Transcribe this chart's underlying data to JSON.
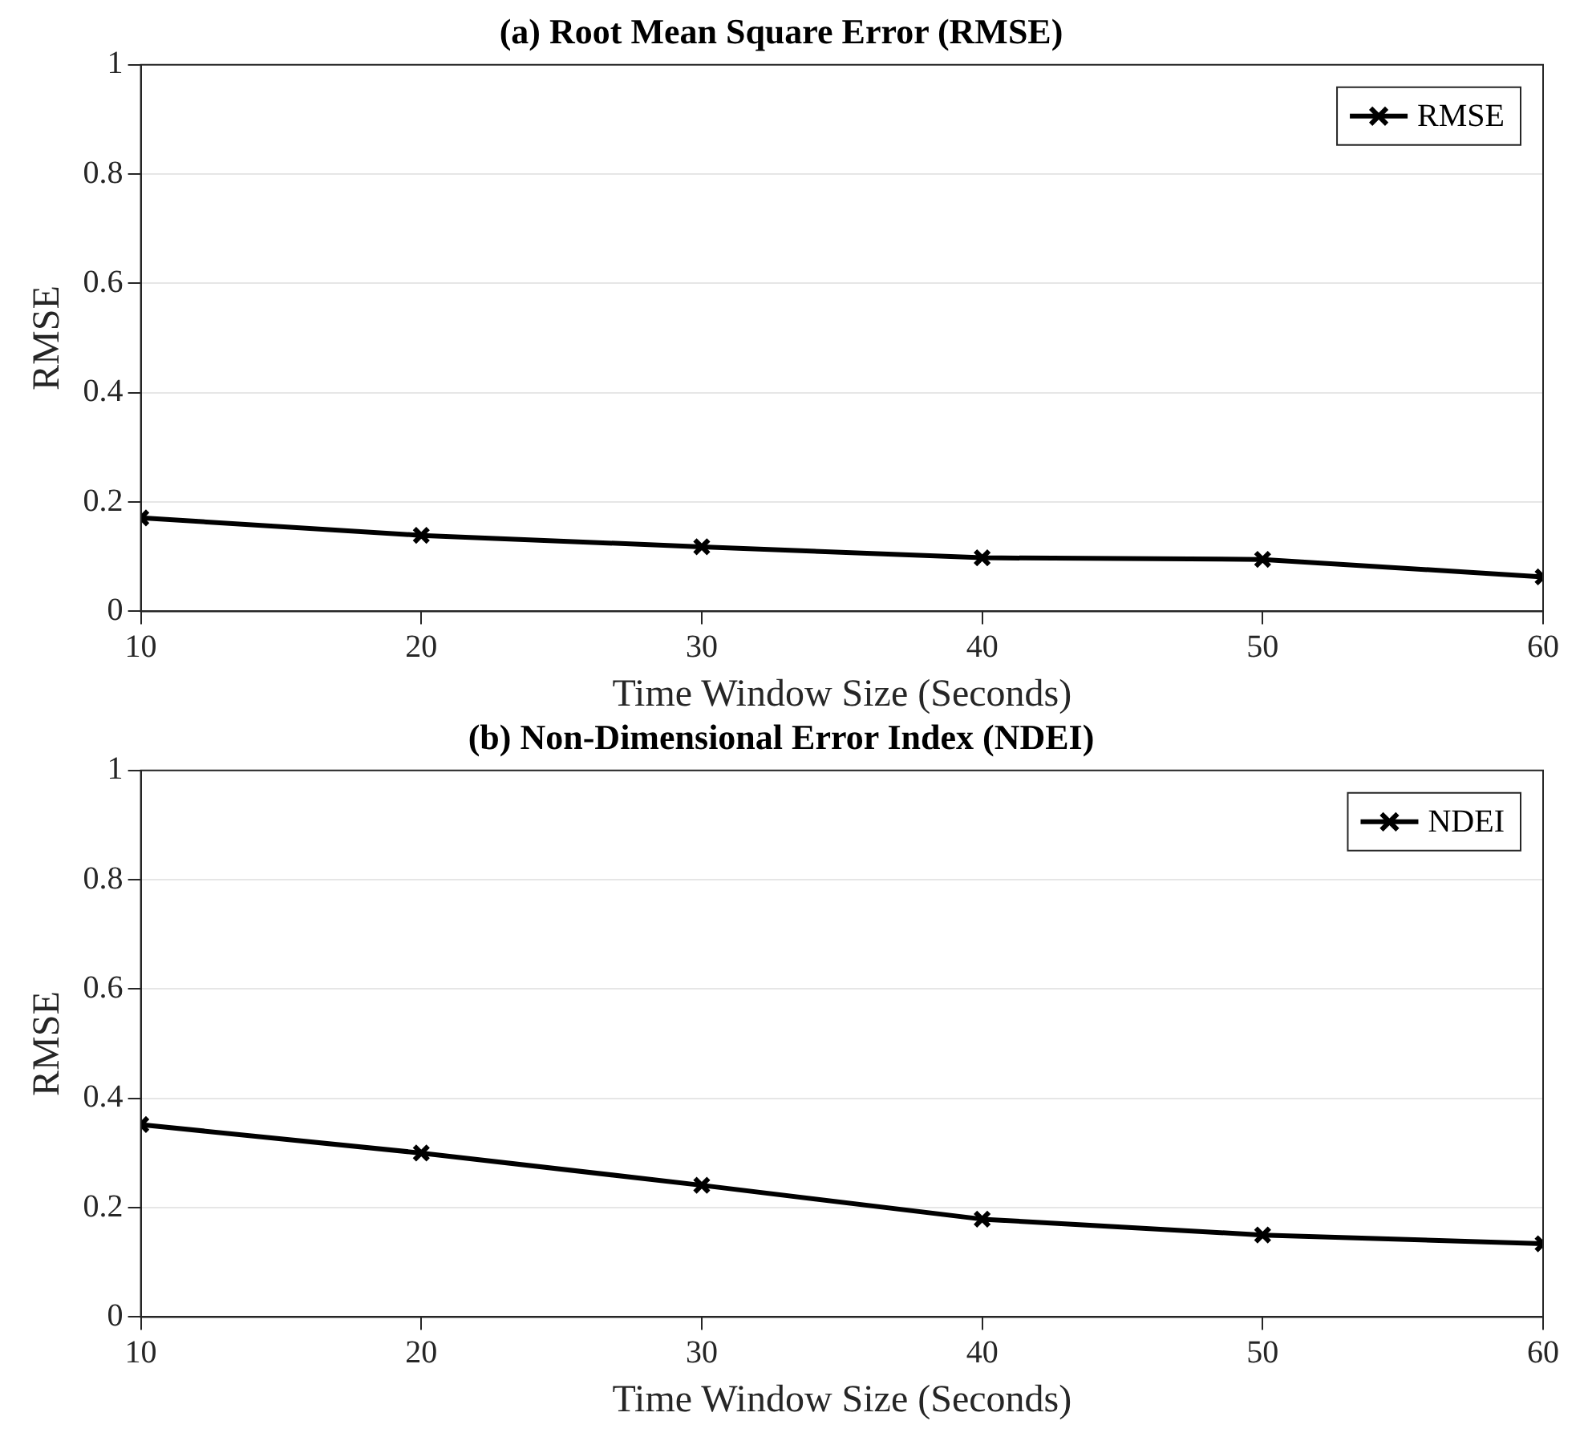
{
  "chart_data": [
    {
      "type": "line",
      "title": "(a) Root Mean Square Error (RMSE)",
      "xlabel": "Time Window Size (Seconds)",
      "ylabel": "RMSE",
      "x": [
        10,
        20,
        30,
        40,
        50,
        60
      ],
      "series": [
        {
          "name": "RMSE",
          "color": "#000000",
          "values": [
            0.171,
            0.139,
            0.118,
            0.098,
            0.095,
            0.063
          ]
        }
      ],
      "xlim": [
        10,
        60
      ],
      "xticks": [
        10,
        20,
        30,
        40,
        50,
        60
      ],
      "ylim": [
        0,
        1
      ],
      "yticks": [
        0,
        0.2,
        0.4,
        0.6,
        0.8,
        1
      ],
      "grid": "y",
      "legend": "top right",
      "marker": "cross",
      "line_style": "solid"
    },
    {
      "type": "line",
      "title": "(b) Non-Dimensional Error Index (NDEI)",
      "xlabel": "Time Window Size (Seconds)",
      "ylabel": "RMSE",
      "x": [
        10,
        20,
        30,
        40,
        50,
        60
      ],
      "series": [
        {
          "name": "NDEI",
          "color": "#000000",
          "values": [
            0.352,
            0.3,
            0.241,
            0.179,
            0.15,
            0.134
          ]
        }
      ],
      "xlim": [
        10,
        60
      ],
      "xticks": [
        10,
        20,
        30,
        40,
        50,
        60
      ],
      "ylim": [
        0,
        1
      ],
      "yticks": [
        0,
        0.2,
        0.4,
        0.6,
        0.8,
        1
      ],
      "grid": "y",
      "legend": "top right",
      "marker": "cross",
      "line_style": "solid"
    }
  ]
}
